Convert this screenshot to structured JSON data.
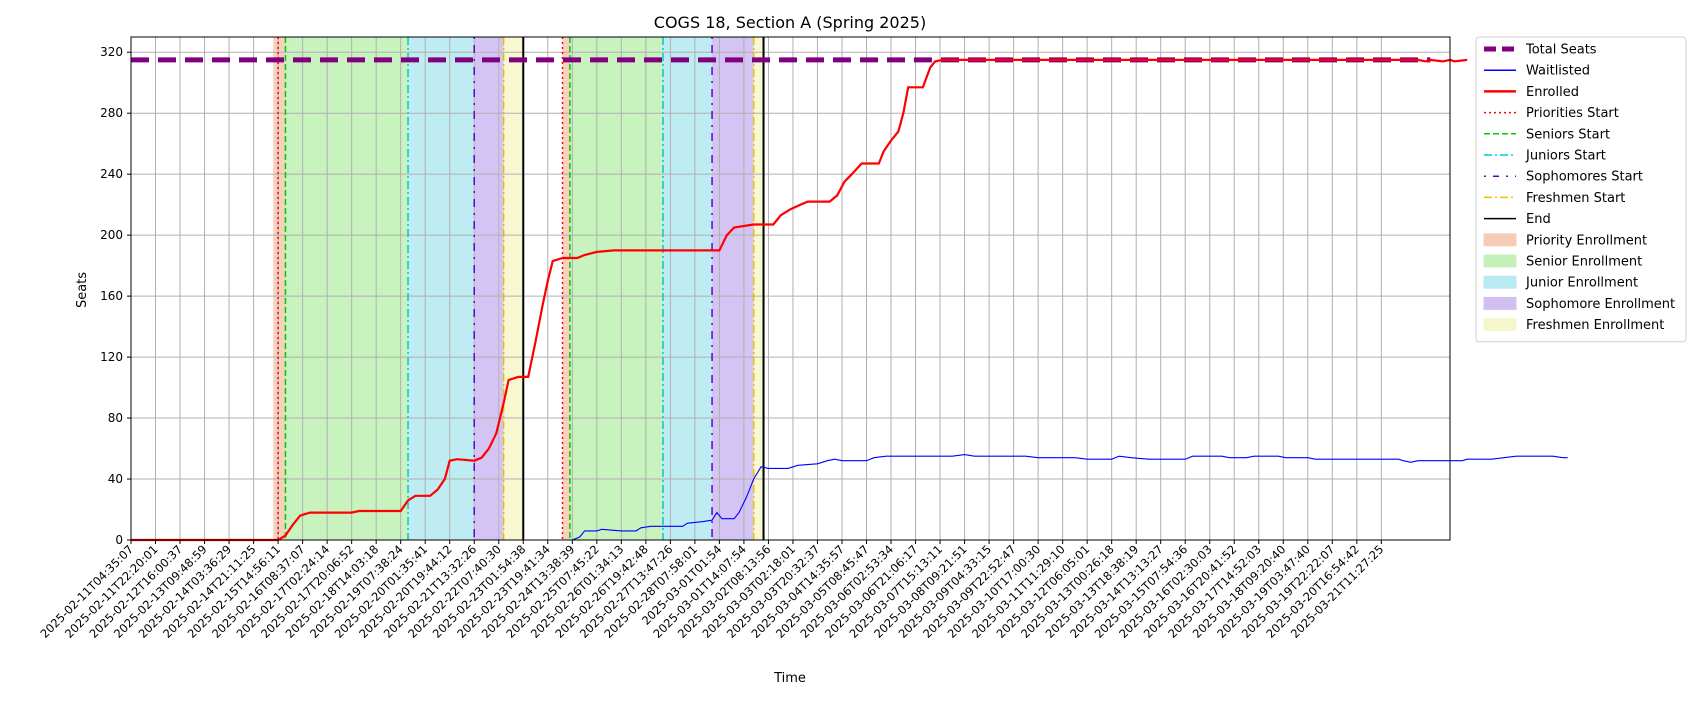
{
  "chart_data": {
    "type": "line",
    "title": "COGS 18, Section A (Spring 2025)",
    "xlabel": "Time",
    "ylabel": "Seats",
    "ylim": [
      0,
      330
    ],
    "yticks": [
      0,
      40,
      80,
      120,
      160,
      200,
      240,
      280,
      320
    ],
    "grid": true,
    "legend_position": "outside-right",
    "x_categories": [
      "2025-02-11T04:35:07",
      "2025-02-11T22:20:01",
      "2025-02-12T16:00:37",
      "2025-02-13T09:48:59",
      "2025-02-14T03:36:29",
      "2025-02-14T21:11:25",
      "2025-02-15T14:56:11",
      "2025-02-16T08:37:07",
      "2025-02-17T02:24:14",
      "2025-02-17T20:06:52",
      "2025-02-18T14:03:18",
      "2025-02-19T07:38:24",
      "2025-02-20T01:35:41",
      "2025-02-20T19:44:12",
      "2025-02-21T13:32:26",
      "2025-02-22T07:40:30",
      "2025-02-23T01:54:38",
      "2025-02-23T19:41:34",
      "2025-02-24T13:38:39",
      "2025-02-25T07:45:22",
      "2025-02-26T01:34:13",
      "2025-02-26T19:42:48",
      "2025-02-27T13:47:26",
      "2025-02-28T07:58:01",
      "2025-03-01T01:54",
      "2025-03-01T14:07:54",
      "2025-03-02T08:13:56",
      "2025-03-03T02:18:01",
      "2025-03-03T20:32:37",
      "2025-03-04T14:35:57",
      "2025-03-05T08:45:47",
      "2025-03-06T02:53:34",
      "2025-03-06T21:06:17",
      "2025-03-07T15:13:11",
      "2025-03-08T09:21:51",
      "2025-03-09T04:33:15",
      "2025-03-09T22:52:47",
      "2025-03-10T17:00:30",
      "2025-03-11T11:29:10",
      "2025-03-12T06:05:01",
      "2025-03-13T00:26:18",
      "2025-03-13T18:38:19",
      "2025-03-14T13:13:27",
      "2025-03-15T07:54:36",
      "2025-03-16T02:30:03",
      "2025-03-16T20:41:52",
      "2025-03-17T14:52:03",
      "2025-03-18T09:20:40",
      "2025-03-19T03:47:40",
      "2025-03-19T22:22:07",
      "2025-03-20T16:54:42",
      "2025-03-21T11:27:25"
    ],
    "series": [
      {
        "name": "Total Seats",
        "color": "#800080",
        "style": "dashed-thick",
        "points": [
          [
            0,
            315
          ],
          [
            53,
            315
          ]
        ]
      },
      {
        "name": "Waitlisted",
        "color": "#0000ff",
        "style": "solid-thin",
        "points": [
          [
            0,
            0
          ],
          [
            18,
            0
          ],
          [
            18.3,
            2
          ],
          [
            18.5,
            6
          ],
          [
            19,
            6
          ],
          [
            19.2,
            7
          ],
          [
            20,
            6
          ],
          [
            20.6,
            6
          ],
          [
            20.8,
            8
          ],
          [
            21.2,
            9
          ],
          [
            22.5,
            9
          ],
          [
            22.7,
            11
          ],
          [
            23.3,
            12
          ],
          [
            23.7,
            13
          ],
          [
            23.9,
            18
          ],
          [
            24.1,
            14
          ],
          [
            24.6,
            14
          ],
          [
            24.8,
            18
          ],
          [
            25.1,
            28
          ],
          [
            25.4,
            40
          ],
          [
            25.7,
            48
          ],
          [
            26,
            47
          ],
          [
            26.8,
            47
          ],
          [
            27.2,
            49
          ],
          [
            28,
            50
          ],
          [
            28.4,
            52
          ],
          [
            28.7,
            53
          ],
          [
            29,
            52
          ],
          [
            30,
            52
          ],
          [
            30.3,
            54
          ],
          [
            30.8,
            55
          ],
          [
            33,
            55
          ],
          [
            33.5,
            55
          ],
          [
            34,
            56
          ],
          [
            34.4,
            55
          ],
          [
            35,
            55
          ],
          [
            36.5,
            55
          ],
          [
            37,
            54
          ],
          [
            38.5,
            54
          ],
          [
            39,
            53
          ],
          [
            40,
            53
          ],
          [
            40.3,
            55
          ],
          [
            40.8,
            54
          ],
          [
            41.5,
            53
          ],
          [
            43,
            53
          ],
          [
            43.3,
            55
          ],
          [
            44.5,
            55
          ],
          [
            44.8,
            54
          ],
          [
            45.5,
            54
          ],
          [
            45.8,
            55
          ],
          [
            46.8,
            55
          ],
          [
            47.1,
            54
          ],
          [
            48,
            54
          ],
          [
            48.3,
            53
          ],
          [
            51.7,
            53
          ],
          [
            51.9,
            52
          ],
          [
            52.2,
            51
          ],
          [
            52.5,
            52
          ],
          [
            54.3,
            52
          ],
          [
            54.5,
            53
          ],
          [
            55.5,
            53
          ],
          [
            56,
            54
          ],
          [
            56.5,
            55
          ],
          [
            58,
            55
          ],
          [
            58.4,
            54
          ],
          [
            58.6,
            54
          ]
        ]
      },
      {
        "name": "Enrolled",
        "color": "#ff0000",
        "style": "solid-thick",
        "points": [
          [
            0,
            0
          ],
          [
            6,
            0
          ],
          [
            6.3,
            3
          ],
          [
            6.6,
            10
          ],
          [
            6.9,
            16
          ],
          [
            7.3,
            18
          ],
          [
            9,
            18
          ],
          [
            9.3,
            19
          ],
          [
            11,
            19
          ],
          [
            11.3,
            26
          ],
          [
            11.6,
            29
          ],
          [
            12.2,
            29
          ],
          [
            12.5,
            33
          ],
          [
            12.8,
            40
          ],
          [
            13,
            52
          ],
          [
            13.3,
            53
          ],
          [
            14,
            52
          ],
          [
            14.3,
            54
          ],
          [
            14.6,
            60
          ],
          [
            14.9,
            70
          ],
          [
            15.2,
            90
          ],
          [
            15.4,
            105
          ],
          [
            15.8,
            107
          ],
          [
            16.2,
            107
          ],
          [
            16.5,
            130
          ],
          [
            16.8,
            155
          ],
          [
            17,
            170
          ],
          [
            17.2,
            183
          ],
          [
            17.6,
            185
          ],
          [
            18.2,
            185
          ],
          [
            18.5,
            187
          ],
          [
            19,
            189
          ],
          [
            19.7,
            190
          ],
          [
            24,
            190
          ],
          [
            24.3,
            200
          ],
          [
            24.6,
            205
          ],
          [
            25,
            206
          ],
          [
            25.4,
            207
          ],
          [
            26.2,
            207
          ],
          [
            26.5,
            213
          ],
          [
            26.9,
            217
          ],
          [
            27.3,
            220
          ],
          [
            27.6,
            222
          ],
          [
            28.5,
            222
          ],
          [
            28.8,
            226
          ],
          [
            29.1,
            235
          ],
          [
            29.4,
            240
          ],
          [
            29.8,
            247
          ],
          [
            30.5,
            247
          ],
          [
            30.7,
            255
          ],
          [
            31,
            262
          ],
          [
            31.3,
            268
          ],
          [
            31.5,
            280
          ],
          [
            31.7,
            297
          ],
          [
            32.3,
            297
          ],
          [
            32.6,
            310
          ],
          [
            32.8,
            314
          ],
          [
            33.1,
            315
          ],
          [
            52.5,
            315
          ],
          [
            52.8,
            314
          ],
          [
            53,
            315
          ],
          [
            53.5,
            314
          ],
          [
            53.8,
            315
          ],
          [
            54,
            314
          ],
          [
            54.5,
            315
          ]
        ]
      },
      {
        "name": "Priorities Start",
        "color": "#ff0000",
        "style": "dotted",
        "vline": 6
      },
      {
        "name": "Seniors Start",
        "color": "#00cc00",
        "style": "dashed",
        "vline": 6.3
      },
      {
        "name": "Juniors Start",
        "color": "#00cccc",
        "style": "dashdot",
        "vline": 11.3
      },
      {
        "name": "Sophomores Start",
        "color": "#6600cc",
        "style": "dashdotted-sparse",
        "vline": 14.0
      },
      {
        "name": "Freshmen Start",
        "color": "#e6c000",
        "style": "dashdot",
        "vline": 15.2
      },
      {
        "name": "End",
        "color": "#000000",
        "style": "solid",
        "vline": 16.0
      }
    ],
    "spans": [
      {
        "name": "Priority Enrollment",
        "color": "#f5c0a8",
        "ranges": [
          [
            5.8,
            6.3
          ],
          [
            17.6,
            17.9
          ]
        ]
      },
      {
        "name": "Senior Enrollment",
        "color": "#b6eea8",
        "ranges": [
          [
            6.3,
            11.3
          ],
          [
            17.9,
            21.7
          ]
        ]
      },
      {
        "name": "Junior Enrollment",
        "color": "#a8e6ee",
        "ranges": [
          [
            11.3,
            14.0
          ],
          [
            21.7,
            23.7
          ]
        ]
      },
      {
        "name": "Sophomore Enrollment",
        "color": "#c6b0f0",
        "ranges": [
          [
            14.0,
            15.2
          ],
          [
            23.7,
            25.4
          ]
        ]
      },
      {
        "name": "Freshmen Enrollment",
        "color": "#f4f5c0",
        "ranges": [
          [
            15.2,
            16.0
          ],
          [
            25.4,
            25.8
          ]
        ]
      }
    ],
    "vlines_second_period": {
      "priorities": 17.6,
      "seniors": 17.9,
      "juniors": 21.7,
      "sophomores": 23.7,
      "freshmen": 25.4,
      "end": 25.8
    },
    "legend": [
      {
        "label": "Total Seats",
        "color": "#800080",
        "kind": "thick-dash"
      },
      {
        "label": "Waitlisted",
        "color": "#0000ff",
        "kind": "line"
      },
      {
        "label": "Enrolled",
        "color": "#ff0000",
        "kind": "thick-line"
      },
      {
        "label": "Priorities Start",
        "color": "#ff0000",
        "kind": "dotted"
      },
      {
        "label": "Seniors Start",
        "color": "#00cc00",
        "kind": "dashed"
      },
      {
        "label": "Juniors Start",
        "color": "#00cccc",
        "kind": "dashdot"
      },
      {
        "label": "Sophomores Start",
        "color": "#6600cc",
        "kind": "sparse-dashdot"
      },
      {
        "label": "Freshmen Start",
        "color": "#e6c000",
        "kind": "dashdot"
      },
      {
        "label": "End",
        "color": "#000000",
        "kind": "line"
      },
      {
        "label": "Priority Enrollment",
        "color": "#f5c0a8",
        "kind": "patch"
      },
      {
        "label": "Senior Enrollment",
        "color": "#b6eea8",
        "kind": "patch"
      },
      {
        "label": "Junior Enrollment",
        "color": "#a8e6ee",
        "kind": "patch"
      },
      {
        "label": "Sophomore Enrollment",
        "color": "#c6b0f0",
        "kind": "patch"
      },
      {
        "label": "Freshmen Enrollment",
        "color": "#f4f5c0",
        "kind": "patch"
      }
    ]
  }
}
